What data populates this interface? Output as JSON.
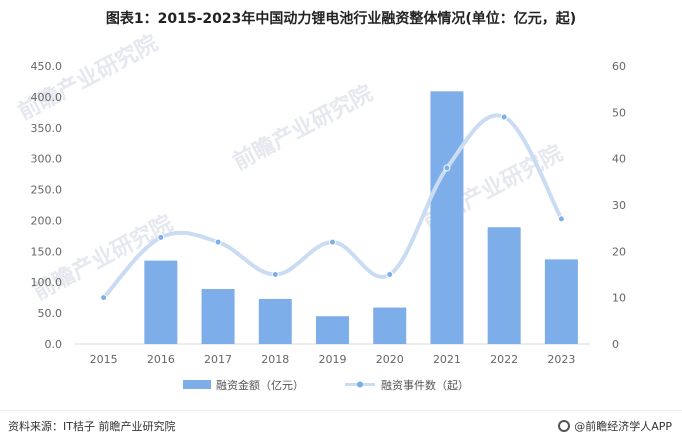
{
  "title": "图表1：2015-2023年中国动力锂电池行业融资整体情况(单位：亿元，起)",
  "chart_data": {
    "type": "bar",
    "title": "图表1：2015-2023年中国动力锂电池行业融资整体情况(单位：亿元，起)",
    "categories": [
      "2015",
      "2016",
      "2017",
      "2018",
      "2019",
      "2020",
      "2021",
      "2022",
      "2023"
    ],
    "series": [
      {
        "name": "融资金额（亿元）",
        "type": "bar",
        "axis": "left",
        "color": "#7eaeea",
        "values": [
          0,
          135,
          89,
          73,
          45,
          59,
          409,
          189,
          137
        ]
      },
      {
        "name": "融资事件数（起）",
        "type": "line",
        "axis": "right",
        "color": "#c9dcf2",
        "values": [
          10,
          23,
          22,
          15,
          22,
          15,
          38,
          49,
          27
        ]
      }
    ],
    "ylim_left": [
      0,
      450
    ],
    "yticks_left": [
      "0.0",
      "50.0",
      "100.0",
      "150.0",
      "200.0",
      "250.0",
      "300.0",
      "350.0",
      "400.0",
      "450.0"
    ],
    "ylim_right": [
      0,
      60
    ],
    "yticks_right": [
      "0",
      "10",
      "20",
      "30",
      "40",
      "50",
      "60"
    ],
    "grid": false,
    "legend_position": "bottom"
  },
  "legend": {
    "bar_label": "融资金额（亿元）",
    "line_label": "融资事件数（起）"
  },
  "footer": {
    "source": "资料来源：IT桔子 前瞻产业研究院",
    "brand": "@前瞻经济学人APP"
  },
  "watermarks": [
    "前瞻产业研究院",
    "前瞻产业研究院",
    "前瞻产业研究院",
    "前瞻产业研究院"
  ]
}
